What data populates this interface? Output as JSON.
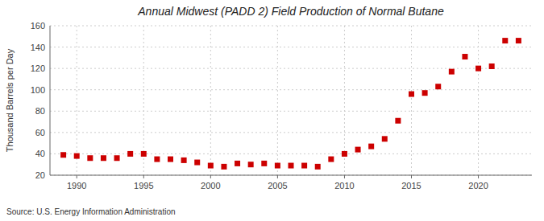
{
  "chart_data": {
    "type": "scatter",
    "title": "Annual Midwest (PADD 2) Field Production of Normal Butane",
    "y_label": "Thousand Barrels per Day",
    "annotations": [
      "Source: U.S. Energy Information Administration"
    ],
    "x": [
      1989,
      1990,
      1991,
      1992,
      1993,
      1994,
      1995,
      1996,
      1997,
      1998,
      1999,
      2000,
      2001,
      2002,
      2003,
      2004,
      2005,
      2006,
      2007,
      2008,
      2009,
      2010,
      2011,
      2012,
      2013,
      2014,
      2015,
      2016,
      2017,
      2018,
      2019,
      2020,
      2021,
      2022,
      2023
    ],
    "values": [
      39,
      38,
      36,
      36,
      36,
      40,
      40,
      35,
      35,
      34,
      32,
      29,
      28,
      31,
      30,
      31,
      29,
      29,
      29,
      28,
      35,
      40,
      44,
      47,
      54,
      71,
      96,
      97,
      103,
      117,
      131,
      120,
      122,
      146,
      146
    ],
    "color": "#cc0000",
    "marker": "square",
    "xlim": [
      1988.0,
      2024.0
    ],
    "ylim": [
      20,
      160
    ],
    "xticks": [
      1990,
      1995,
      2000,
      2005,
      2010,
      2015,
      2020
    ],
    "yticks": [
      20,
      40,
      60,
      80,
      100,
      120,
      140,
      160
    ],
    "grid": true
  }
}
